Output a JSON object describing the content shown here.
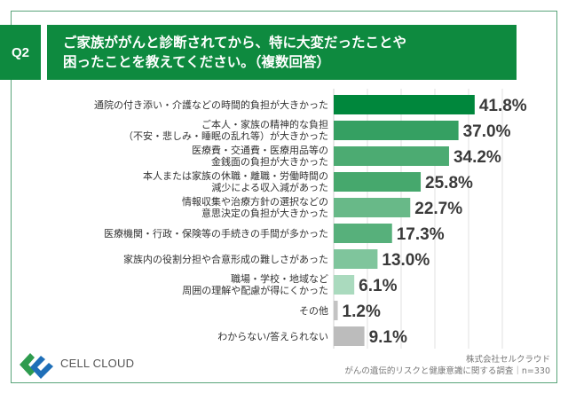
{
  "header": {
    "q_label": "Q2",
    "title_line1": "ご家族ががんと診断されてから、特に大変だったことや",
    "title_line2": "困ったことを教えてください。（複数回答）"
  },
  "chart_data": {
    "type": "bar",
    "orientation": "horizontal",
    "title": "ご家族ががんと診断されてから、特に大変だったことや困ったことを教えてください。（複数回答）",
    "xlim": [
      0,
      50
    ],
    "grid": true,
    "unit": "%",
    "categories": [
      [
        "通院の付き添い・介護などの時間的負担が大きかった"
      ],
      [
        "ご本人・家族の精神的な負担",
        "（不安・悲しみ・睡眠の乱れ等）が大きかった"
      ],
      [
        "医療費・交通費・医療用品等の",
        "金銭面の負担が大きかった"
      ],
      [
        "本人または家族の休職・離職・労働時間の",
        "減少による収入減があった"
      ],
      [
        "情報収集や治療方針の選択などの",
        "意思決定の負担が大きかった"
      ],
      [
        "医療機関・行政・保険等の手続きの手間が多かった"
      ],
      [
        "家族内の役割分担や合意形成の難しさがあった"
      ],
      [
        "職場・学校・地域など",
        "周囲の理解や配慮が得にくかった"
      ],
      [
        "その他"
      ],
      [
        "わからない/答えられない"
      ]
    ],
    "values": [
      41.8,
      37.0,
      34.2,
      25.8,
      22.7,
      17.3,
      13.0,
      6.1,
      1.2,
      9.1
    ],
    "value_labels": [
      "41.8%",
      "37.0%",
      "34.2%",
      "25.8%",
      "22.7%",
      "17.3%",
      "13.0%",
      "6.1%",
      "1.2%",
      "9.1%"
    ],
    "colors": [
      "#00873c",
      "#35a062",
      "#4cab72",
      "#46a86d",
      "#68b988",
      "#57b07b",
      "#7fc59c",
      "#aadabe",
      "#c3c3c3",
      "#bcbcbc"
    ]
  },
  "footer": {
    "company": "株式会社セルクラウド",
    "survey": "がんの遺伝的リスクと健康意識に関する調査｜n=330"
  },
  "brand": {
    "name": "CELL CLOUD",
    "logo_colors": [
      "#2e9b4e",
      "#1f6fb8"
    ]
  }
}
